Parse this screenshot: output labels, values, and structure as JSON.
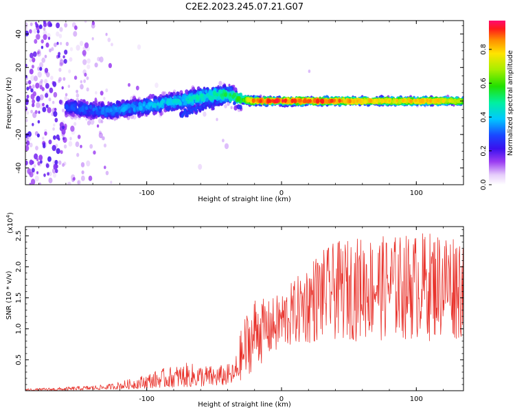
{
  "title": "C2E2.2023.245.07.21.G07",
  "chart_data": [
    {
      "type": "heatmap",
      "title": "C2E2.2023.245.07.21.G07",
      "xlabel": "Height of straight line (km)",
      "ylabel": "Frequency (Hz)",
      "xlim": [
        -190,
        135
      ],
      "ylim": [
        -50,
        48
      ],
      "xticks": [
        -100,
        0,
        100
      ],
      "xtick_labels": [
        "-100",
        "0",
        "100"
      ],
      "yticks": [
        -40,
        -20,
        0,
        20,
        40
      ],
      "ytick_labels": [
        "-40",
        "-20",
        "0",
        "20",
        "40"
      ],
      "colorbar": {
        "label": "Normalized spectral amplitude",
        "range": [
          0.0,
          0.97
        ],
        "ticks": [
          0.0,
          0.2,
          0.4,
          0.6,
          0.8
        ],
        "tick_labels": [
          "0.0",
          "0.2",
          "0.4",
          "0.6",
          "0.8"
        ]
      },
      "ridge": {
        "description_points": [
          {
            "height_km": -155,
            "freq_hz": -4,
            "amplitude": 0.3
          },
          {
            "height_km": -130,
            "freq_hz": -6,
            "amplitude": 0.35
          },
          {
            "height_km": -100,
            "freq_hz": -3,
            "amplitude": 0.4
          },
          {
            "height_km": -75,
            "freq_hz": 0,
            "amplitude": 0.45
          },
          {
            "height_km": -55,
            "freq_hz": 3,
            "amplitude": 0.5
          },
          {
            "height_km": -40,
            "freq_hz": 4,
            "amplitude": 0.55
          },
          {
            "height_km": -30,
            "freq_hz": 1,
            "amplitude": 0.6
          },
          {
            "height_km": -20,
            "freq_hz": 0,
            "amplitude": 0.9
          },
          {
            "height_km": 0,
            "freq_hz": 0,
            "amplitude": 0.95
          },
          {
            "height_km": 40,
            "freq_hz": 0,
            "amplitude": 0.9
          },
          {
            "height_km": 80,
            "freq_hz": 0,
            "amplitude": 0.8
          },
          {
            "height_km": 110,
            "freq_hz": 0,
            "amplitude": 0.85
          },
          {
            "height_km": 135,
            "freq_hz": 0,
            "amplitude": 0.7
          }
        ]
      }
    },
    {
      "type": "line",
      "xlabel": "Height of straight line (km)",
      "ylabel": "SNR (10 * v/v)",
      "y_multiplier_label": "(x10",
      "y_multiplier_exponent": "4",
      "y_multiplier_close": ")",
      "xlim": [
        -190,
        135
      ],
      "ylim": [
        0,
        2.65
      ],
      "xticks": [
        -100,
        0,
        100
      ],
      "xtick_labels": [
        "-100",
        "0",
        "100"
      ],
      "yticks": [
        0.5,
        1.0,
        1.5,
        2.0,
        2.5
      ],
      "ytick_labels": [
        "0.5",
        "1.0",
        "1.5",
        "2.0",
        "2.5"
      ],
      "series": [
        {
          "name": "SNR",
          "color": "#e8312a",
          "envelope": {
            "x": [
              -190,
              -160,
              -130,
              -110,
              -90,
              -70,
              -50,
              -35,
              -28,
              -20,
              -10,
              0,
              10,
              25,
              40,
              60,
              80,
              100,
              120,
              135
            ],
            "low": [
              0.0,
              0.0,
              0.02,
              0.03,
              0.05,
              0.06,
              0.07,
              0.1,
              0.2,
              0.35,
              0.5,
              0.6,
              0.7,
              0.75,
              0.8,
              0.8,
              0.8,
              0.8,
              0.8,
              0.8
            ],
            "high": [
              0.03,
              0.06,
              0.1,
              0.2,
              0.35,
              0.45,
              0.4,
              0.45,
              1.2,
              1.55,
              1.45,
              1.6,
              1.8,
              2.2,
              2.4,
              2.5,
              2.5,
              2.55,
              2.6,
              2.6
            ]
          }
        }
      ]
    }
  ]
}
